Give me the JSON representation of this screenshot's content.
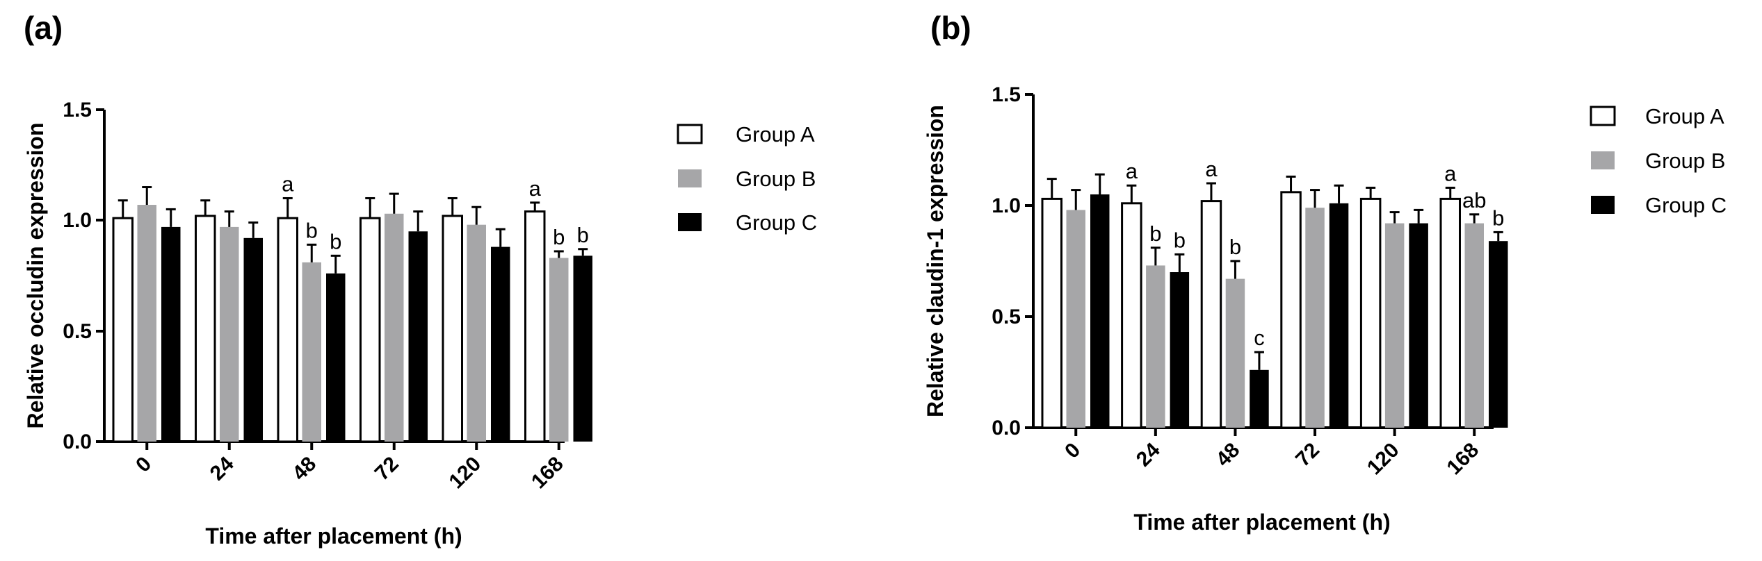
{
  "figure": {
    "panels": [
      "(a)",
      "(b)"
    ]
  },
  "chart_data": [
    {
      "type": "bar",
      "panel_label": "(a)",
      "title": "",
      "xlabel": "Time after placement (h)",
      "ylabel": "Relative occludin expression",
      "ylim": [
        0,
        1.5
      ],
      "yticks": [
        "0.0",
        "0.5",
        "1.0",
        "1.5"
      ],
      "categories": [
        "0",
        "24",
        "48",
        "72",
        "120",
        "168"
      ],
      "legend_position": "right",
      "series": [
        {
          "name": "Group A",
          "color": "#ffffff",
          "values": [
            1.01,
            1.02,
            1.01,
            1.01,
            1.02,
            1.04
          ],
          "errors": [
            0.08,
            0.07,
            0.09,
            0.09,
            0.08,
            0.04
          ],
          "annotations": [
            "",
            "",
            "a",
            "",
            "",
            "a"
          ]
        },
        {
          "name": "Group B",
          "color": "#a6a6a8",
          "values": [
            1.07,
            0.97,
            0.81,
            1.03,
            0.98,
            0.83
          ],
          "errors": [
            0.08,
            0.07,
            0.08,
            0.09,
            0.08,
            0.03
          ],
          "annotations": [
            "",
            "",
            "b",
            "",
            "",
            "b"
          ]
        },
        {
          "name": "Group C",
          "color": "#000000",
          "values": [
            0.97,
            0.92,
            0.76,
            0.95,
            0.88,
            0.84
          ],
          "errors": [
            0.08,
            0.07,
            0.08,
            0.09,
            0.08,
            0.03
          ],
          "annotations": [
            "",
            "",
            "b",
            "",
            "",
            "b"
          ]
        }
      ]
    },
    {
      "type": "bar",
      "panel_label": "(b)",
      "title": "",
      "xlabel": "Time after placement (h)",
      "ylabel": "Relative claudin-1 expression",
      "ylim": [
        0,
        1.5
      ],
      "yticks": [
        "0.0",
        "0.5",
        "1.0",
        "1.5"
      ],
      "categories": [
        "0",
        "24",
        "48",
        "72",
        "120",
        "168"
      ],
      "legend_position": "right",
      "series": [
        {
          "name": "Group A",
          "color": "#ffffff",
          "values": [
            1.03,
            1.01,
            1.02,
            1.06,
            1.03,
            1.03
          ],
          "errors": [
            0.09,
            0.08,
            0.08,
            0.07,
            0.05,
            0.05
          ],
          "annotations": [
            "",
            "a",
            "a",
            "",
            "",
            "a"
          ]
        },
        {
          "name": "Group B",
          "color": "#a6a6a8",
          "values": [
            0.98,
            0.73,
            0.67,
            0.99,
            0.92,
            0.92
          ],
          "errors": [
            0.09,
            0.08,
            0.08,
            0.08,
            0.05,
            0.04
          ],
          "annotations": [
            "",
            "b",
            "b",
            "",
            "",
            "ab"
          ]
        },
        {
          "name": "Group C",
          "color": "#000000",
          "values": [
            1.05,
            0.7,
            0.26,
            1.01,
            0.92,
            0.84
          ],
          "errors": [
            0.09,
            0.08,
            0.08,
            0.08,
            0.06,
            0.04
          ],
          "annotations": [
            "",
            "b",
            "c",
            "",
            "",
            "b"
          ]
        }
      ]
    }
  ]
}
